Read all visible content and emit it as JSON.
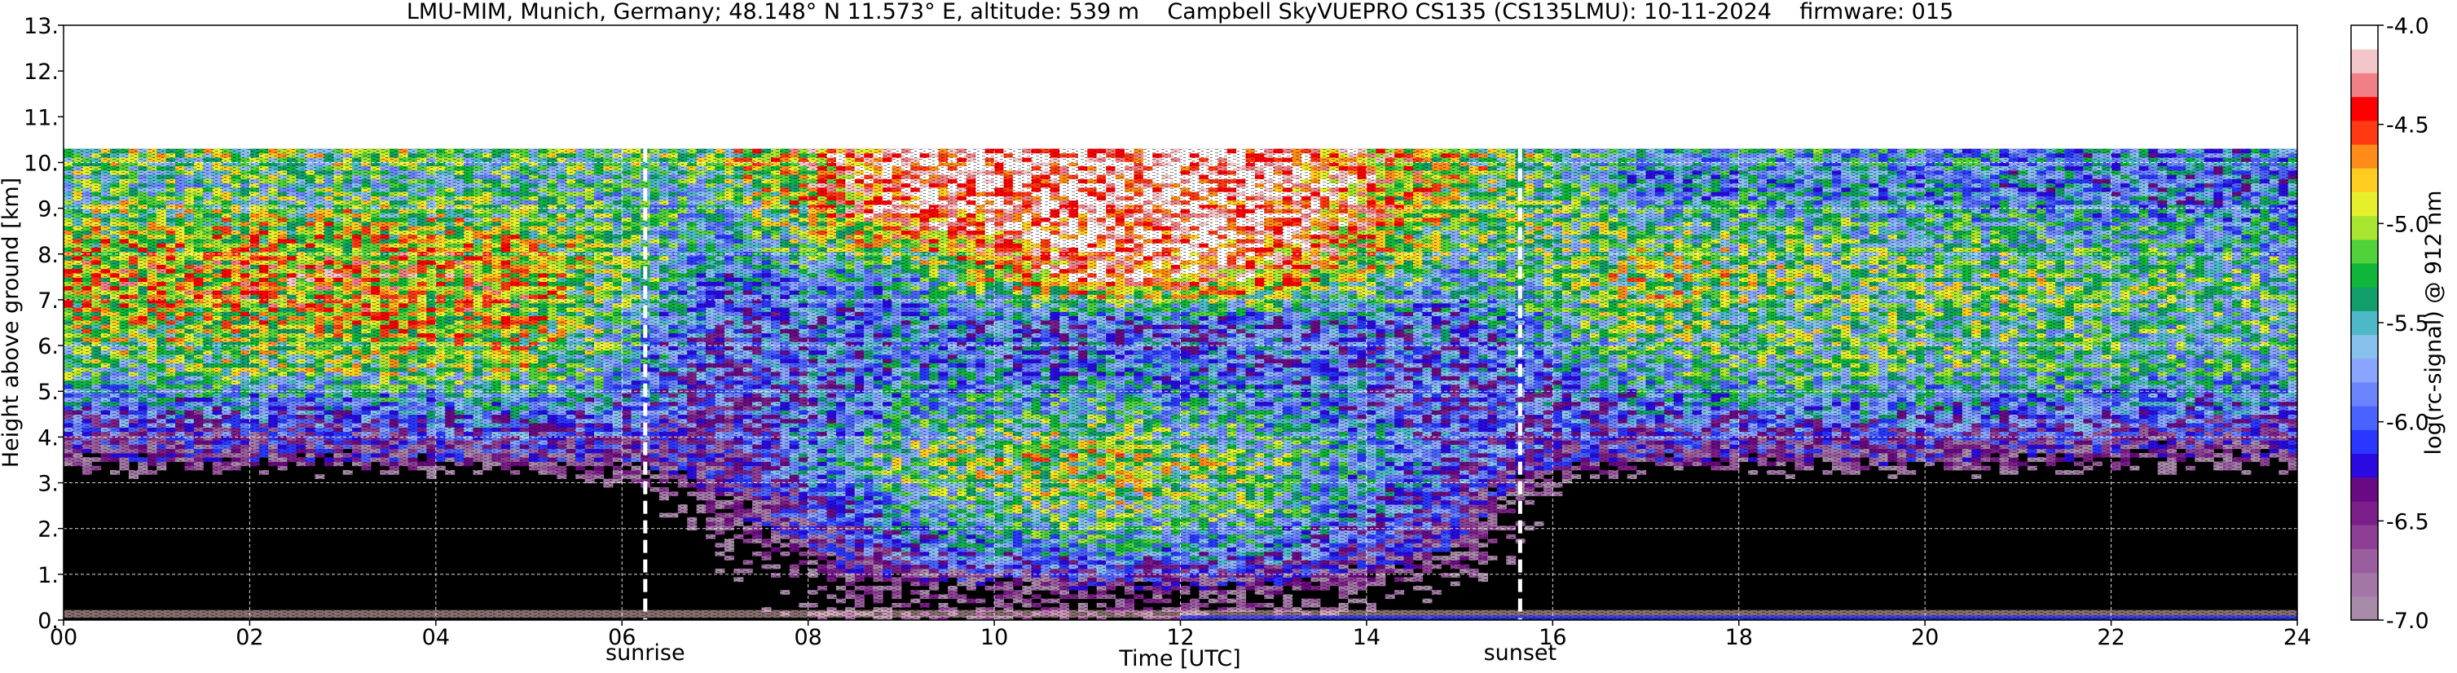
{
  "chart_data": {
    "type": "heatmap",
    "title": "LMU-MIM, Munich, Germany; 48.148° N 11.573° E, altitude: 539 m    Campbell SkyVUEPRO CS135 (CS135LMU): 10-11-2024    firmware: 015",
    "xlabel": "Time [UTC]",
    "ylabel": "Height above ground [km]",
    "x_ticks": [
      "00",
      "02",
      "04",
      "06",
      "08",
      "10",
      "12",
      "14",
      "16",
      "18",
      "20",
      "22",
      "24"
    ],
    "y_ticks": [
      "0.",
      "1.",
      "2.",
      "3.",
      "4.",
      "5.",
      "6.",
      "7.",
      "8.",
      "9.",
      "10.",
      "11.",
      "12.",
      "13."
    ],
    "xlim": [
      0,
      24
    ],
    "ylim": [
      0,
      13
    ],
    "grid": true,
    "data_top_km": 10.3,
    "markers": [
      {
        "label": "sunrise",
        "x": 6.25
      },
      {
        "label": "sunset",
        "x": 15.65
      }
    ],
    "colorbar": {
      "label": "log(rc-signal) @ 912 nm",
      "ticks": [
        "-4.0",
        "-4.5",
        "-5.0",
        "-5.5",
        "-6.0",
        "-6.5",
        "-7.0"
      ],
      "range": [
        -7.0,
        -4.0
      ],
      "colors": [
        "#a68aa8",
        "#a276a6",
        "#9a5d9e",
        "#8e3f95",
        "#7c1e8a",
        "#6a0a82",
        "#2a0ae0",
        "#2a37ff",
        "#4a63ff",
        "#6b85ff",
        "#8aa5ff",
        "#86c0ec",
        "#4db8c8",
        "#119e6a",
        "#0fb63a",
        "#52d23a",
        "#a8e632",
        "#e5ef2c",
        "#ffcc1f",
        "#ff8c18",
        "#ff3a12",
        "#ff0000",
        "#f07f86",
        "#f3c6c9",
        "#ffffff"
      ]
    },
    "profile": {
      "levels_km": [
        0.5,
        1.5,
        2.5,
        3.5,
        4.5,
        5.5,
        6.5,
        7.5,
        8.5,
        9.5,
        10.1
      ],
      "times_h": [
        1,
        3,
        5,
        7,
        9,
        11,
        13,
        15,
        17,
        19,
        21,
        23
      ],
      "log_signal": [
        [
          -9.0,
          -9.0,
          -9.0,
          -7.6,
          -7.0,
          -7.0,
          -7.0,
          -7.6,
          -9.0,
          -9.0,
          -9.0,
          -9.0
        ],
        [
          -9.0,
          -9.0,
          -9.0,
          -7.3,
          -6.0,
          -5.6,
          -5.8,
          -6.6,
          -9.0,
          -9.0,
          -9.0,
          -9.0
        ],
        [
          -9.0,
          -9.0,
          -9.0,
          -6.8,
          -5.6,
          -5.2,
          -5.4,
          -6.2,
          -9.0,
          -9.0,
          -9.0,
          -9.0
        ],
        [
          -6.6,
          -6.6,
          -6.5,
          -6.4,
          -5.2,
          -5.0,
          -5.3,
          -6.0,
          -6.6,
          -6.6,
          -6.7,
          -6.8
        ],
        [
          -6.0,
          -6.0,
          -5.8,
          -6.2,
          -5.6,
          -5.4,
          -5.6,
          -6.1,
          -5.9,
          -5.8,
          -5.9,
          -6.0
        ],
        [
          -5.3,
          -5.2,
          -5.1,
          -6.1,
          -5.8,
          -5.8,
          -5.9,
          -6.0,
          -5.5,
          -5.3,
          -5.4,
          -5.5
        ],
        [
          -5.0,
          -4.9,
          -4.9,
          -6.0,
          -5.8,
          -6.0,
          -5.9,
          -5.9,
          -5.2,
          -5.3,
          -5.3,
          -5.4
        ],
        [
          -4.8,
          -4.7,
          -4.8,
          -5.8,
          -5.6,
          -4.4,
          -4.6,
          -5.6,
          -5.0,
          -5.3,
          -5.2,
          -5.4
        ],
        [
          -5.0,
          -4.9,
          -5.0,
          -5.6,
          -4.6,
          -4.2,
          -4.3,
          -5.2,
          -5.3,
          -5.4,
          -5.5,
          -5.6
        ],
        [
          -5.4,
          -5.4,
          -5.5,
          -5.4,
          -4.2,
          -4.1,
          -4.2,
          -5.0,
          -5.8,
          -5.7,
          -5.8,
          -5.9
        ],
        [
          -5.2,
          -5.2,
          -5.3,
          -5.2,
          -4.2,
          -4.1,
          -4.2,
          -5.0,
          -5.6,
          -5.6,
          -5.7,
          -5.8
        ]
      ]
    }
  }
}
